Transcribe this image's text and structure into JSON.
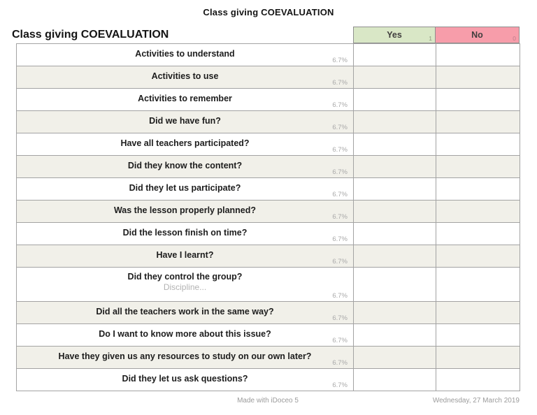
{
  "document": {
    "title": "Class giving COEVALUATION"
  },
  "sheet": {
    "title": "Class giving COEVALUATION"
  },
  "columns": [
    {
      "label": "Yes",
      "count": "1",
      "bg": "#d9e7c6",
      "count_color": "#8e9a80"
    },
    {
      "label": "No",
      "count": "0",
      "bg": "#f79daa",
      "count_color": "#bd7d8a"
    }
  ],
  "table": {
    "rows": [
      {
        "question": "Activities to understand",
        "weight": "6.7%"
      },
      {
        "question": "Activities to use",
        "weight": "6.7%"
      },
      {
        "question": "Activities to remember",
        "weight": "6.7%"
      },
      {
        "question": "Did we have fun?",
        "weight": "6.7%"
      },
      {
        "question": "Have all teachers participated?",
        "weight": "6.7%"
      },
      {
        "question": "Did they know the content?",
        "weight": "6.7%"
      },
      {
        "question": "Did they let us participate?",
        "weight": "6.7%"
      },
      {
        "question": "Was the lesson properly planned?",
        "weight": "6.7%"
      },
      {
        "question": "Did the lesson finish on time?",
        "weight": "6.7%"
      },
      {
        "question": "Have I learnt?",
        "weight": "6.7%"
      },
      {
        "question": "Did they control the group?",
        "subtitle": "Discipline...",
        "weight": "6.7%"
      },
      {
        "question": "Did all the teachers work in the same way?",
        "weight": "6.7%"
      },
      {
        "question": "Do I want to know more about this issue?",
        "weight": "6.7%"
      },
      {
        "question": "Have they given us any resources to study on our own later?",
        "weight": "6.7%"
      },
      {
        "question": "Did they let us ask questions?",
        "weight": "6.7%"
      }
    ]
  },
  "footer": {
    "made_with": "Made with iDoceo 5",
    "date": "Wednesday, 27 March 2019"
  },
  "colors": {
    "yes_header_bg": "#d9e7c6",
    "no_header_bg": "#f79daa",
    "row_alt_bg": "#f1f0e9",
    "border": "#a3a3a3",
    "muted_text": "#a9a9a9"
  }
}
